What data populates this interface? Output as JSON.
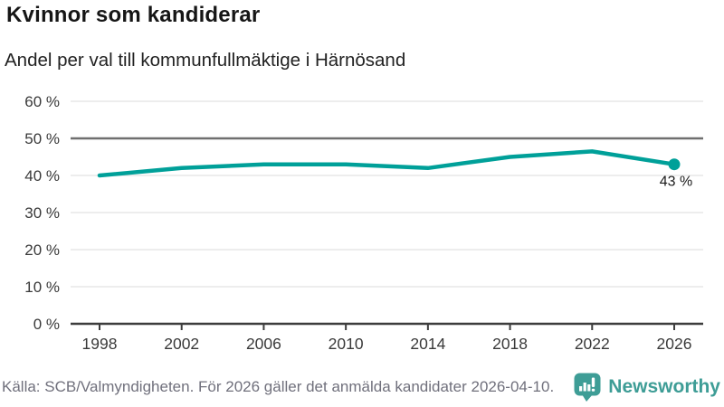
{
  "header": {
    "title": "Kvinnor som kandiderar",
    "subtitle": "Andel per val till kommunfullmäktige i Härnösand"
  },
  "footer": {
    "source": "Källa: SCB/Valmyndigheten. För 2026 gäller det anmälda kandidater 2026-04-10.",
    "brand": "Newsworthy",
    "logo_icon": "speech-bubble-bar-chart-icon"
  },
  "colors": {
    "line": "#00a099",
    "marker": "#00a099",
    "gridline": "#e2e2e2",
    "reference_line": "#6f6f6f",
    "axis": "#3d3d3d",
    "tick_text": "#3a3a3a",
    "label_text": "#1a1a1a",
    "brand": "#3e9d96",
    "muted_text": "#70707c"
  },
  "chart_data": {
    "type": "line",
    "title": "Kvinnor som kandiderar",
    "subtitle": "Andel per val till kommunfullmäktige i Härnösand",
    "x": [
      1998,
      2002,
      2006,
      2010,
      2014,
      2018,
      2022,
      2026
    ],
    "series": [
      {
        "name": "Andel kvinnor som kandiderar",
        "values": [
          40,
          42,
          43,
          43,
          42,
          45,
          46.5,
          43
        ]
      }
    ],
    "xtick_labels": [
      "1998",
      "2002",
      "2006",
      "2010",
      "2014",
      "2018",
      "2022",
      "2026"
    ],
    "ytick_labels": [
      "0 %",
      "10 %",
      "20 %",
      "30 %",
      "40 %",
      "50 %",
      "60 %"
    ],
    "yticks": [
      0,
      10,
      20,
      30,
      40,
      50,
      60
    ],
    "ylim": [
      0,
      60
    ],
    "ytick_suffix": " %",
    "grid": true,
    "reference_line_y": 50,
    "legend": "none",
    "last_point_label": "43 %",
    "last_point_marker": true
  }
}
